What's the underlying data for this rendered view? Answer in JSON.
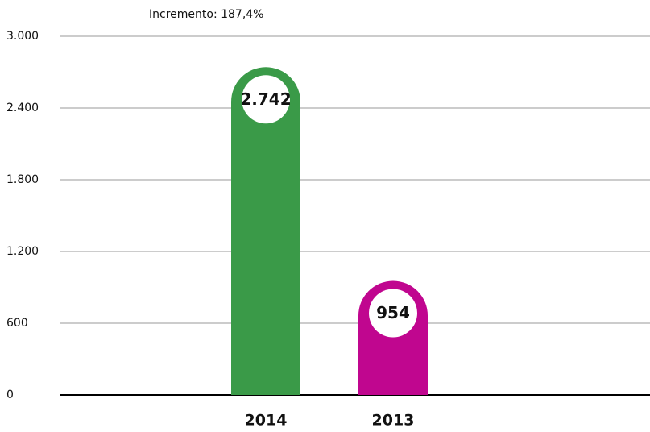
{
  "chart_data": {
    "type": "bar",
    "annotation": "Incremento: 187,4%",
    "categories": [
      "2014",
      "2013"
    ],
    "values": [
      2742,
      954
    ],
    "value_labels": [
      "2.742",
      "954"
    ],
    "colors": [
      "#3a9a48",
      "#c0068f"
    ],
    "ylim": [
      0,
      3000
    ],
    "yticks": [
      0,
      600,
      {
        "value": 1200,
        "label": "1.200"
      },
      {
        "value": 1800,
        "label": "1.800"
      },
      {
        "value": 2400,
        "label": "2.400"
      },
      {
        "value": 3000,
        "label": "3.000"
      }
    ],
    "grid": true
  }
}
